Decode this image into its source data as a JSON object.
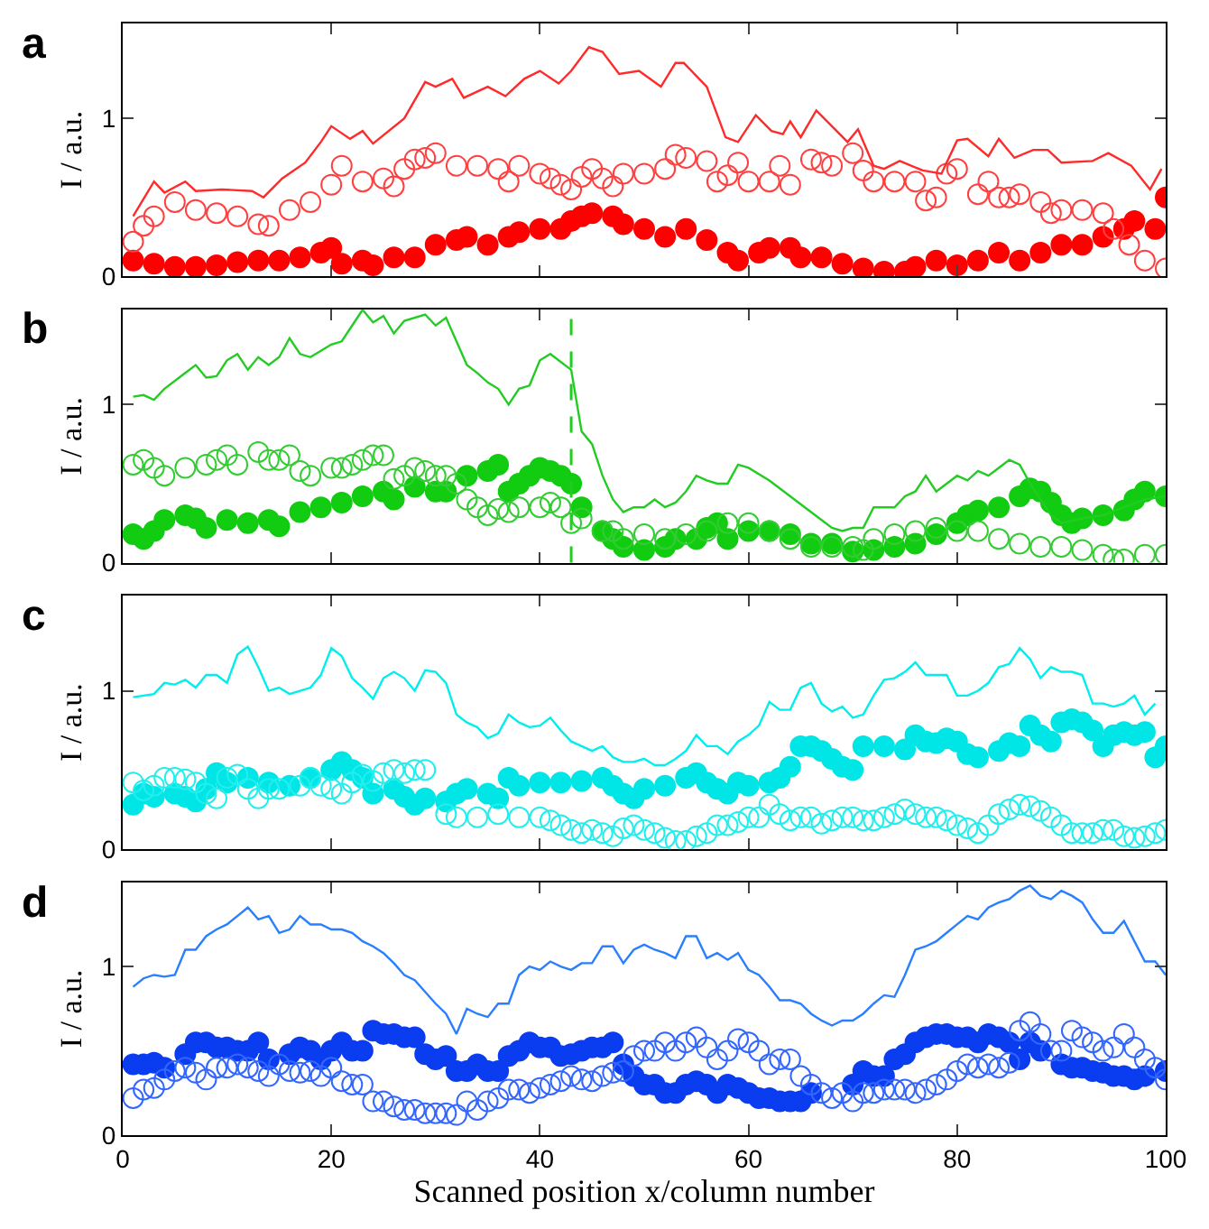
{
  "chart_data": [
    {
      "type": "line",
      "title": "a",
      "ylabel": "I / a.u.",
      "xlim": [
        0,
        100
      ],
      "xticks": [
        0,
        20,
        40,
        60,
        80,
        100
      ],
      "ylim": [
        0,
        1.6
      ],
      "yticks": [
        0,
        1
      ],
      "tick_labels": "y",
      "grid": false,
      "legend": false,
      "series": [
        {
          "color": "#ff2a2a",
          "marker": "none",
          "line_style": "solid",
          "x": [
            1,
            3,
            4,
            6,
            7,
            9.5,
            12.4,
            13.5,
            15.3,
            17.5,
            19,
            20,
            21.8,
            23,
            24,
            27,
            29,
            30,
            31.6,
            32.7,
            35,
            36.7,
            38.5,
            40,
            41.8,
            43,
            44.7,
            46,
            47.6,
            49.5,
            51.6,
            53,
            53.8,
            56,
            57.8,
            59,
            60.7,
            62.2,
            63.3,
            64,
            65,
            66.5,
            68,
            69.5,
            70.5,
            72,
            73,
            74.5,
            76.7,
            78.5,
            80,
            81,
            83,
            84,
            85.5,
            87.3,
            88.7,
            90,
            93,
            94.5,
            96.7,
            98.5,
            99.6
          ],
          "values": [
            0.38,
            0.6,
            0.53,
            0.6,
            0.54,
            0.55,
            0.54,
            0.5,
            0.62,
            0.72,
            0.85,
            0.95,
            0.87,
            0.92,
            0.84,
            1.0,
            1.23,
            1.2,
            1.25,
            1.13,
            1.2,
            1.14,
            1.25,
            1.3,
            1.22,
            1.3,
            1.45,
            1.42,
            1.28,
            1.3,
            1.2,
            1.35,
            1.35,
            1.2,
            0.88,
            0.85,
            1.02,
            0.92,
            0.9,
            0.98,
            0.88,
            1.05,
            0.95,
            0.85,
            0.93,
            0.7,
            0.68,
            0.73,
            0.67,
            0.65,
            0.86,
            0.87,
            0.76,
            0.87,
            0.75,
            0.8,
            0.8,
            0.72,
            0.73,
            0.78,
            0.7,
            0.55,
            0.68
          ]
        },
        {
          "type": "scatter",
          "color": "#ff0000",
          "marker": "circle",
          "x": [
            1,
            3,
            5,
            7,
            9,
            11,
            13,
            15,
            17,
            19,
            20,
            21,
            23,
            24,
            26,
            28,
            30,
            32,
            33,
            35,
            37,
            38,
            40,
            42,
            43,
            44,
            45,
            47,
            48,
            50,
            52,
            54,
            56,
            58,
            59,
            61,
            62,
            64,
            65,
            67,
            69,
            71,
            73,
            75,
            76,
            78,
            80,
            82,
            84,
            86,
            88,
            90,
            92,
            94,
            96,
            97,
            99,
            100
          ],
          "values": [
            0.1,
            0.08,
            0.06,
            0.06,
            0.07,
            0.09,
            0.1,
            0.1,
            0.12,
            0.15,
            0.18,
            0.08,
            0.1,
            0.07,
            0.12,
            0.12,
            0.2,
            0.23,
            0.25,
            0.2,
            0.25,
            0.28,
            0.3,
            0.3,
            0.35,
            0.38,
            0.4,
            0.38,
            0.33,
            0.3,
            0.25,
            0.3,
            0.23,
            0.15,
            0.1,
            0.15,
            0.18,
            0.18,
            0.12,
            0.12,
            0.08,
            0.05,
            0.03,
            0.03,
            0.06,
            0.1,
            0.07,
            0.1,
            0.15,
            0.1,
            0.15,
            0.2,
            0.2,
            0.25,
            0.3,
            0.35,
            0.3,
            0.5
          ]
        },
        {
          "type": "scatter",
          "color": "#ff4040",
          "marker": "circle-open",
          "x": [
            1,
            2,
            3,
            5,
            7,
            9,
            11,
            13,
            14,
            16,
            18,
            20,
            21,
            23,
            25,
            26,
            27,
            28,
            29,
            30,
            32,
            34,
            36,
            37,
            38,
            40,
            41,
            42,
            43,
            44,
            45,
            46,
            47,
            48,
            50,
            52,
            53,
            54,
            56,
            57,
            58,
            59,
            60,
            62,
            63,
            64,
            66,
            67,
            68,
            70,
            71,
            72,
            74,
            76,
            77,
            78,
            79,
            80,
            82,
            83,
            84,
            85,
            86,
            88,
            89,
            90,
            92,
            94,
            95,
            96.5,
            98,
            100
          ],
          "values": [
            0.22,
            0.32,
            0.38,
            0.47,
            0.42,
            0.4,
            0.38,
            0.33,
            0.32,
            0.42,
            0.47,
            0.58,
            0.7,
            0.6,
            0.62,
            0.57,
            0.68,
            0.74,
            0.75,
            0.78,
            0.7,
            0.7,
            0.68,
            0.6,
            0.7,
            0.65,
            0.62,
            0.58,
            0.55,
            0.63,
            0.68,
            0.62,
            0.57,
            0.65,
            0.65,
            0.68,
            0.77,
            0.75,
            0.73,
            0.6,
            0.64,
            0.72,
            0.6,
            0.6,
            0.7,
            0.58,
            0.74,
            0.72,
            0.7,
            0.78,
            0.67,
            0.6,
            0.6,
            0.6,
            0.48,
            0.5,
            0.65,
            0.68,
            0.52,
            0.6,
            0.5,
            0.5,
            0.52,
            0.47,
            0.4,
            0.42,
            0.42,
            0.4,
            0.3,
            0.2,
            0.1,
            0.05
          ]
        }
      ]
    },
    {
      "type": "line",
      "title": "b",
      "ylabel": "I / a.u.",
      "xlim": [
        0,
        100
      ],
      "xticks": [
        0,
        20,
        40,
        60,
        80,
        100
      ],
      "ylim": [
        0,
        1.6
      ],
      "yticks": [
        0,
        1
      ],
      "tick_labels": "y",
      "grid": false,
      "legend": false,
      "ref_lines": [
        {
          "axis": "x",
          "value": 43,
          "label": null,
          "color": "#22cc22",
          "line_style": "dashed"
        }
      ],
      "series": [
        {
          "color": "#22cc22",
          "marker": "none",
          "line_style": "solid",
          "x": [
            1,
            2,
            3,
            4,
            6,
            7,
            8,
            9,
            10,
            11,
            12,
            13,
            14,
            15,
            16,
            17,
            18,
            20,
            21,
            22,
            23,
            24,
            25,
            26,
            27,
            29,
            30,
            31,
            32,
            33,
            34,
            35,
            36,
            37,
            38,
            39,
            40,
            41,
            43,
            44,
            45,
            46,
            47,
            48,
            49,
            50,
            51,
            52,
            53,
            54,
            55,
            56,
            57,
            58,
            59,
            60,
            62,
            64,
            66,
            68,
            69,
            70,
            71,
            72,
            74,
            75,
            76,
            77,
            78,
            79,
            80,
            81,
            82,
            83,
            84,
            85,
            86,
            87,
            88,
            89,
            90,
            92,
            94,
            96,
            98,
            100
          ],
          "values": [
            1.05,
            1.06,
            1.03,
            1.1,
            1.2,
            1.25,
            1.17,
            1.18,
            1.28,
            1.32,
            1.22,
            1.3,
            1.25,
            1.3,
            1.42,
            1.32,
            1.3,
            1.38,
            1.4,
            1.5,
            1.6,
            1.52,
            1.56,
            1.45,
            1.53,
            1.57,
            1.5,
            1.55,
            1.4,
            1.25,
            1.2,
            1.14,
            1.1,
            1.0,
            1.1,
            1.12,
            1.28,
            1.32,
            1.22,
            0.83,
            0.75,
            0.55,
            0.4,
            0.32,
            0.35,
            0.35,
            0.4,
            0.35,
            0.38,
            0.45,
            0.55,
            0.52,
            0.5,
            0.5,
            0.62,
            0.6,
            0.52,
            0.42,
            0.32,
            0.22,
            0.2,
            0.22,
            0.22,
            0.35,
            0.35,
            0.42,
            0.45,
            0.55,
            0.45,
            0.5,
            0.55,
            0.52,
            0.58,
            0.55,
            0.6,
            0.65,
            0.62,
            0.5,
            0.4,
            0.3,
            0.25,
            0.28,
            0.3,
            0.35,
            0.4,
            0.42
          ]
        },
        {
          "type": "scatter",
          "color": "#11cc11",
          "marker": "circle",
          "x": [
            1,
            2,
            3,
            4,
            6,
            7,
            8,
            10,
            12,
            14,
            15,
            17,
            19,
            21,
            23,
            25,
            26,
            28,
            30,
            31,
            33,
            35,
            36,
            37,
            38,
            39,
            40,
            41,
            42,
            43,
            44,
            46,
            47,
            48,
            50,
            52,
            53,
            55,
            56,
            57,
            58,
            60,
            62,
            64,
            66,
            68,
            70,
            72,
            74,
            76,
            78,
            80,
            81,
            82,
            84,
            86,
            87,
            88,
            89,
            90,
            91,
            92,
            94,
            96,
            97,
            98,
            100
          ],
          "values": [
            0.18,
            0.15,
            0.2,
            0.27,
            0.3,
            0.28,
            0.22,
            0.27,
            0.25,
            0.27,
            0.23,
            0.32,
            0.35,
            0.38,
            0.42,
            0.45,
            0.4,
            0.48,
            0.45,
            0.45,
            0.55,
            0.58,
            0.62,
            0.45,
            0.5,
            0.55,
            0.6,
            0.58,
            0.55,
            0.5,
            0.35,
            0.2,
            0.15,
            0.1,
            0.08,
            0.1,
            0.15,
            0.15,
            0.22,
            0.25,
            0.15,
            0.2,
            0.2,
            0.18,
            0.12,
            0.12,
            0.07,
            0.08,
            0.1,
            0.12,
            0.18,
            0.25,
            0.3,
            0.33,
            0.35,
            0.42,
            0.47,
            0.45,
            0.38,
            0.3,
            0.25,
            0.28,
            0.3,
            0.33,
            0.4,
            0.45,
            0.42
          ]
        },
        {
          "type": "scatter",
          "color": "#33cc33",
          "marker": "circle-open",
          "x": [
            1,
            2,
            3,
            4,
            6,
            8,
            9,
            10,
            11,
            13,
            14,
            15,
            16,
            17,
            18,
            20,
            21,
            22,
            23,
            24,
            25,
            26,
            27,
            28,
            29,
            30,
            31,
            32,
            33,
            34,
            35,
            36,
            37,
            38,
            40,
            41,
            42,
            43,
            44,
            46,
            47,
            48,
            50,
            52,
            54,
            56,
            58,
            60,
            62,
            64,
            66,
            68,
            70,
            71,
            72,
            74,
            76,
            78,
            80,
            82,
            84,
            86,
            88,
            90,
            92,
            94,
            95,
            96,
            98,
            100
          ],
          "values": [
            0.62,
            0.65,
            0.6,
            0.55,
            0.6,
            0.62,
            0.65,
            0.68,
            0.62,
            0.7,
            0.65,
            0.65,
            0.68,
            0.58,
            0.55,
            0.6,
            0.6,
            0.62,
            0.65,
            0.68,
            0.68,
            0.53,
            0.55,
            0.6,
            0.58,
            0.55,
            0.55,
            0.5,
            0.4,
            0.35,
            0.3,
            0.34,
            0.32,
            0.35,
            0.35,
            0.38,
            0.35,
            0.25,
            0.28,
            0.2,
            0.2,
            0.15,
            0.18,
            0.15,
            0.18,
            0.2,
            0.25,
            0.25,
            0.2,
            0.15,
            0.1,
            0.1,
            0.1,
            0.08,
            0.15,
            0.18,
            0.2,
            0.22,
            0.2,
            0.2,
            0.15,
            0.12,
            0.1,
            0.1,
            0.08,
            0.05,
            0.02,
            0.02,
            0.05,
            0.05
          ]
        }
      ]
    },
    {
      "type": "line",
      "title": "c",
      "ylabel": "I / a.u.",
      "xlim": [
        0,
        100
      ],
      "xticks": [
        0,
        20,
        40,
        60,
        80,
        100
      ],
      "ylim": [
        0,
        1.6
      ],
      "yticks": [
        0,
        1
      ],
      "tick_labels": "y",
      "grid": false,
      "legend": false,
      "series": [
        {
          "color": "#00eeee",
          "marker": "none",
          "line_style": "solid",
          "x": [
            1,
            3,
            4,
            5,
            6,
            7,
            8,
            9,
            10,
            11,
            12,
            13,
            14,
            15,
            16,
            18,
            19,
            20,
            21,
            22,
            23,
            24,
            25,
            26,
            27,
            28,
            29,
            30,
            31,
            32,
            33,
            34,
            35,
            36,
            37,
            38,
            39,
            40,
            41,
            42,
            43,
            44,
            45,
            46,
            47,
            48,
            49,
            50,
            51,
            52,
            53,
            54,
            55,
            56,
            57,
            58,
            59,
            60,
            61,
            62,
            63,
            64,
            65,
            66,
            67,
            68,
            69,
            70,
            71,
            72,
            73,
            74,
            75,
            76,
            77,
            78,
            79,
            80,
            81,
            82,
            83,
            84,
            85,
            86,
            87,
            88,
            89,
            90,
            91,
            92,
            93,
            94,
            95,
            96,
            97,
            98,
            99
          ],
          "values": [
            0.96,
            0.98,
            1.05,
            1.04,
            1.07,
            1.02,
            1.1,
            1.1,
            1.05,
            1.23,
            1.28,
            1.15,
            1.0,
            1.02,
            0.98,
            1.02,
            1.1,
            1.27,
            1.22,
            1.08,
            1.02,
            0.95,
            1.08,
            1.12,
            1.08,
            1.0,
            1.13,
            1.12,
            1.05,
            0.85,
            0.8,
            0.77,
            0.7,
            0.73,
            0.85,
            0.8,
            0.77,
            0.78,
            0.83,
            0.75,
            0.68,
            0.65,
            0.62,
            0.65,
            0.58,
            0.55,
            0.55,
            0.57,
            0.53,
            0.53,
            0.57,
            0.62,
            0.72,
            0.65,
            0.65,
            0.6,
            0.68,
            0.72,
            0.78,
            0.93,
            0.88,
            0.88,
            1.02,
            1.05,
            0.92,
            0.87,
            0.9,
            0.83,
            0.85,
            0.97,
            1.07,
            1.08,
            1.12,
            1.18,
            1.1,
            1.1,
            1.1,
            0.97,
            0.97,
            1.0,
            1.05,
            1.15,
            1.17,
            1.27,
            1.2,
            1.08,
            1.15,
            1.12,
            1.12,
            1.1,
            0.92,
            0.92,
            0.9,
            0.92,
            0.97,
            0.85,
            0.92
          ]
        },
        {
          "type": "scatter",
          "color": "#00e5e5",
          "marker": "circle",
          "x": [
            1,
            2,
            3,
            5,
            6,
            7,
            8,
            9,
            10,
            12,
            14,
            16,
            18,
            20,
            21,
            22,
            23,
            24,
            26,
            27,
            28,
            29,
            31,
            32,
            33,
            35,
            36,
            37,
            38,
            40,
            42,
            44,
            46,
            47,
            48,
            49,
            50,
            52,
            54,
            55,
            56,
            57,
            58,
            59,
            60,
            62,
            63,
            64,
            65,
            66,
            67,
            68,
            69,
            70,
            71,
            73,
            75,
            76,
            77,
            78,
            79,
            80,
            81,
            82,
            84,
            85,
            86,
            87,
            88,
            89,
            90,
            91,
            92,
            93,
            94,
            95,
            96,
            97,
            98,
            99,
            100
          ],
          "values": [
            0.28,
            0.35,
            0.33,
            0.35,
            0.33,
            0.3,
            0.38,
            0.48,
            0.42,
            0.45,
            0.42,
            0.4,
            0.45,
            0.5,
            0.55,
            0.5,
            0.45,
            0.35,
            0.38,
            0.33,
            0.28,
            0.32,
            0.3,
            0.35,
            0.38,
            0.35,
            0.32,
            0.45,
            0.4,
            0.42,
            0.42,
            0.43,
            0.45,
            0.4,
            0.35,
            0.32,
            0.38,
            0.4,
            0.45,
            0.48,
            0.42,
            0.38,
            0.35,
            0.42,
            0.4,
            0.42,
            0.45,
            0.52,
            0.65,
            0.65,
            0.62,
            0.57,
            0.52,
            0.5,
            0.65,
            0.65,
            0.63,
            0.72,
            0.68,
            0.67,
            0.7,
            0.68,
            0.6,
            0.58,
            0.62,
            0.67,
            0.65,
            0.78,
            0.72,
            0.68,
            0.8,
            0.82,
            0.8,
            0.75,
            0.65,
            0.72,
            0.74,
            0.72,
            0.74,
            0.58,
            0.65
          ]
        },
        {
          "type": "scatter",
          "color": "#22eeee",
          "marker": "circle-open",
          "x": [
            1,
            2,
            3,
            4,
            5,
            6,
            7,
            8,
            9,
            10,
            11,
            12,
            13,
            14,
            15,
            17,
            18,
            19,
            20,
            21,
            22,
            23,
            24,
            25,
            26,
            27,
            28,
            29,
            31,
            32,
            34,
            36,
            38,
            40,
            41,
            42,
            43,
            44,
            45,
            46,
            47,
            48,
            49,
            50,
            51,
            52,
            53,
            54,
            55,
            56,
            57,
            58,
            59,
            60,
            61,
            62,
            63,
            64,
            65,
            66,
            67,
            68,
            69,
            70,
            71,
            72,
            73,
            74,
            75,
            76,
            77,
            78,
            79,
            80,
            81,
            82,
            83,
            84,
            85,
            86,
            87,
            88,
            89,
            90,
            91,
            92,
            93,
            94,
            95,
            96,
            97,
            98,
            99,
            100
          ],
          "values": [
            0.42,
            0.37,
            0.4,
            0.45,
            0.45,
            0.44,
            0.42,
            0.35,
            0.32,
            0.45,
            0.47,
            0.38,
            0.32,
            0.38,
            0.38,
            0.4,
            0.45,
            0.4,
            0.38,
            0.35,
            0.42,
            0.47,
            0.43,
            0.48,
            0.5,
            0.48,
            0.5,
            0.5,
            0.22,
            0.2,
            0.2,
            0.22,
            0.2,
            0.2,
            0.18,
            0.15,
            0.12,
            0.1,
            0.12,
            0.1,
            0.08,
            0.13,
            0.15,
            0.12,
            0.1,
            0.07,
            0.05,
            0.05,
            0.08,
            0.1,
            0.15,
            0.15,
            0.17,
            0.2,
            0.2,
            0.28,
            0.22,
            0.18,
            0.2,
            0.2,
            0.16,
            0.18,
            0.2,
            0.2,
            0.18,
            0.18,
            0.2,
            0.22,
            0.25,
            0.22,
            0.2,
            0.2,
            0.18,
            0.15,
            0.13,
            0.1,
            0.15,
            0.22,
            0.25,
            0.28,
            0.27,
            0.24,
            0.2,
            0.15,
            0.1,
            0.1,
            0.1,
            0.12,
            0.12,
            0.08,
            0.07,
            0.08,
            0.1,
            0.12
          ]
        }
      ]
    },
    {
      "type": "line",
      "title": "d",
      "xlabel": "Scanned position x/column number",
      "ylabel": "I / a.u.",
      "xlim": [
        0,
        100
      ],
      "xticks": [
        0,
        20,
        40,
        60,
        80,
        100
      ],
      "ylim": [
        0,
        1.5
      ],
      "yticks": [
        0,
        1
      ],
      "grid": false,
      "legend": false,
      "series": [
        {
          "color": "#2a7fff",
          "marker": "none",
          "line_style": "solid",
          "x": [
            1,
            2,
            3,
            4,
            5,
            6,
            7,
            8,
            9,
            10,
            11,
            12,
            13,
            14,
            15,
            16,
            17,
            18,
            19,
            20,
            21,
            22,
            23,
            24,
            25,
            26,
            27,
            28,
            29,
            30,
            31,
            32,
            33,
            34,
            35,
            36,
            37,
            38,
            39,
            40,
            41,
            42,
            43,
            44,
            45,
            46,
            47,
            48,
            49,
            50,
            51,
            52,
            53,
            54,
            55,
            56,
            57,
            58,
            59,
            60,
            61,
            62,
            63,
            64,
            65,
            66,
            67,
            68,
            69,
            70,
            71,
            72,
            73,
            74,
            75,
            76,
            77,
            78,
            79,
            80,
            81,
            82,
            83,
            84,
            85,
            86,
            87,
            88,
            89,
            90,
            91,
            92,
            93,
            94,
            95,
            96,
            97,
            98,
            99,
            100
          ],
          "values": [
            0.88,
            0.93,
            0.95,
            0.94,
            0.95,
            1.1,
            1.1,
            1.18,
            1.22,
            1.25,
            1.3,
            1.35,
            1.28,
            1.3,
            1.2,
            1.22,
            1.3,
            1.25,
            1.25,
            1.22,
            1.22,
            1.2,
            1.15,
            1.12,
            1.08,
            1.02,
            0.95,
            0.92,
            0.85,
            0.78,
            0.72,
            0.6,
            0.75,
            0.72,
            0.7,
            0.78,
            0.78,
            0.95,
            1.0,
            0.98,
            1.03,
            1.0,
            0.98,
            1.02,
            1.02,
            1.12,
            1.12,
            1.02,
            1.1,
            1.13,
            1.1,
            1.08,
            1.05,
            1.18,
            1.18,
            1.05,
            1.08,
            1.04,
            1.08,
            0.98,
            0.95,
            0.88,
            0.8,
            0.8,
            0.78,
            0.72,
            0.68,
            0.65,
            0.68,
            0.68,
            0.72,
            0.78,
            0.83,
            0.82,
            0.95,
            1.1,
            1.12,
            1.15,
            1.2,
            1.25,
            1.3,
            1.28,
            1.35,
            1.38,
            1.4,
            1.45,
            1.48,
            1.42,
            1.4,
            1.45,
            1.42,
            1.38,
            1.28,
            1.2,
            1.2,
            1.27,
            1.15,
            1.03,
            1.03,
            0.95
          ]
        },
        {
          "type": "scatter",
          "color": "#0a3cf0",
          "marker": "circle",
          "x": [
            1,
            2,
            3,
            4,
            6,
            7,
            8,
            9,
            10,
            11,
            12,
            13,
            14,
            16,
            17,
            18,
            19,
            20,
            21,
            22,
            23,
            24,
            25,
            26,
            27,
            28,
            29,
            30,
            31,
            32,
            33,
            34,
            35,
            36,
            37,
            38,
            39,
            40,
            41,
            42,
            43,
            44,
            45,
            46,
            47,
            48,
            49,
            50,
            51,
            52,
            53,
            54,
            55,
            56,
            57,
            58,
            59,
            60,
            61,
            62,
            63,
            64,
            65,
            66,
            70,
            71,
            72,
            73,
            74,
            75,
            76,
            77,
            78,
            79,
            80,
            81,
            82,
            83,
            84,
            85,
            86,
            87,
            88,
            90,
            91,
            92,
            93,
            94,
            95,
            96,
            97,
            98,
            100
          ],
          "values": [
            0.42,
            0.42,
            0.43,
            0.4,
            0.48,
            0.55,
            0.55,
            0.52,
            0.52,
            0.5,
            0.5,
            0.55,
            0.45,
            0.48,
            0.52,
            0.5,
            0.45,
            0.5,
            0.55,
            0.5,
            0.5,
            0.62,
            0.6,
            0.6,
            0.58,
            0.58,
            0.48,
            0.45,
            0.47,
            0.38,
            0.38,
            0.42,
            0.38,
            0.38,
            0.47,
            0.5,
            0.55,
            0.52,
            0.52,
            0.47,
            0.48,
            0.5,
            0.52,
            0.52,
            0.55,
            0.42,
            0.35,
            0.3,
            0.3,
            0.25,
            0.25,
            0.3,
            0.32,
            0.3,
            0.25,
            0.3,
            0.28,
            0.25,
            0.22,
            0.22,
            0.2,
            0.2,
            0.2,
            0.25,
            0.3,
            0.38,
            0.35,
            0.35,
            0.45,
            0.48,
            0.55,
            0.58,
            0.6,
            0.6,
            0.58,
            0.58,
            0.55,
            0.6,
            0.58,
            0.55,
            0.45,
            0.55,
            0.5,
            0.42,
            0.4,
            0.4,
            0.38,
            0.37,
            0.35,
            0.35,
            0.33,
            0.35,
            0.38
          ]
        },
        {
          "type": "scatter",
          "color": "#3366ff",
          "marker": "circle-open",
          "x": [
            1,
            2,
            3,
            4,
            5,
            6,
            7,
            8,
            9,
            10,
            11,
            12,
            13,
            14,
            15,
            16,
            17,
            18,
            19,
            20,
            21,
            22,
            23,
            24,
            25,
            26,
            27,
            28,
            29,
            30,
            31,
            32,
            33,
            34,
            35,
            36,
            37,
            38,
            39,
            40,
            41,
            42,
            43,
            44,
            45,
            46,
            47,
            48,
            49,
            50,
            51,
            52,
            53,
            54,
            55,
            56,
            57,
            58,
            59,
            60,
            61,
            62,
            63,
            64,
            65,
            66,
            67,
            68,
            69,
            70,
            71,
            72,
            73,
            74,
            75,
            76,
            77,
            78,
            79,
            80,
            81,
            82,
            83,
            84,
            85,
            86,
            87,
            88,
            89,
            90,
            91,
            92,
            93,
            94,
            95,
            96,
            97,
            98,
            99,
            100
          ],
          "values": [
            0.22,
            0.27,
            0.28,
            0.33,
            0.38,
            0.4,
            0.37,
            0.33,
            0.4,
            0.4,
            0.42,
            0.4,
            0.38,
            0.35,
            0.42,
            0.38,
            0.37,
            0.38,
            0.35,
            0.4,
            0.32,
            0.3,
            0.3,
            0.2,
            0.2,
            0.17,
            0.15,
            0.15,
            0.13,
            0.13,
            0.13,
            0.12,
            0.2,
            0.15,
            0.2,
            0.22,
            0.27,
            0.27,
            0.25,
            0.28,
            0.3,
            0.32,
            0.35,
            0.33,
            0.32,
            0.35,
            0.37,
            0.38,
            0.47,
            0.5,
            0.5,
            0.55,
            0.5,
            0.55,
            0.58,
            0.52,
            0.45,
            0.5,
            0.57,
            0.55,
            0.5,
            0.42,
            0.45,
            0.45,
            0.35,
            0.3,
            0.25,
            0.22,
            0.25,
            0.2,
            0.25,
            0.25,
            0.27,
            0.27,
            0.27,
            0.25,
            0.27,
            0.3,
            0.33,
            0.38,
            0.42,
            0.4,
            0.42,
            0.4,
            0.43,
            0.62,
            0.67,
            0.6,
            0.5,
            0.5,
            0.62,
            0.58,
            0.55,
            0.5,
            0.52,
            0.6,
            0.52,
            0.45,
            0.4,
            0.33
          ]
        }
      ]
    }
  ]
}
